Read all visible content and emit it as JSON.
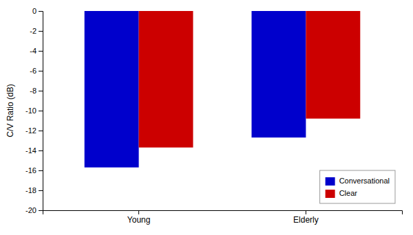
{
  "chart_data": {
    "type": "bar",
    "categories": [
      "Young",
      "Elderly"
    ],
    "series": [
      {
        "name": "Conversational",
        "color": "#0000CC",
        "values": [
          -15.7,
          -12.7
        ]
      },
      {
        "name": "Clear",
        "color": "#CC0000",
        "values": [
          -13.7,
          -10.8
        ]
      }
    ],
    "ylabel": "C/V Ratio (dB)",
    "ylim": [
      -20,
      0
    ],
    "yticks": [
      0,
      -2,
      -4,
      -6,
      -8,
      -10,
      -12,
      -14,
      -16,
      -18,
      -20
    ],
    "grid": false,
    "legend": "lower right"
  }
}
